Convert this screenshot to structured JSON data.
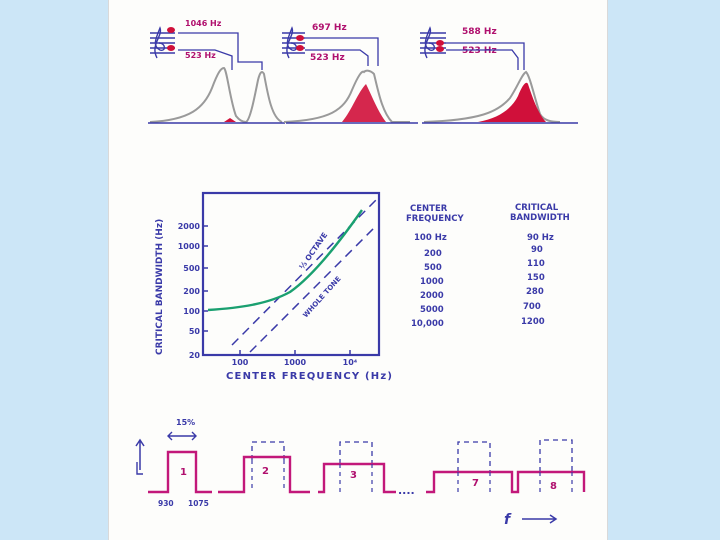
{
  "top_panels": [
    {
      "upper_freq": "1046 Hz",
      "lower_freq": "523 Hz"
    },
    {
      "upper_freq": "697 Hz",
      "lower_freq": "523 Hz"
    },
    {
      "upper_freq": "588 Hz",
      "lower_freq": "523 Hz"
    }
  ],
  "graph": {
    "ylabel": "CRITICAL BANDWIDTH (Hz)",
    "xlabel": "CENTER FREQUENCY (Hz)",
    "y_ticks": [
      "2000",
      "1000",
      "500",
      "200",
      "100",
      "50",
      "20"
    ],
    "x_ticks": [
      "100",
      "1000",
      "10⁴"
    ],
    "line_labels": {
      "third_octave": "⅓ OCTAVE",
      "whole_tone": "WHOLE TONE"
    }
  },
  "table": {
    "col1_header": [
      "CENTER",
      "FREQUENCY"
    ],
    "col2_header": [
      "CRITICAL",
      "BANDWIDTH"
    ],
    "rows": [
      {
        "f": "100 Hz",
        "bw": "90 Hz"
      },
      {
        "f": "200",
        "bw": "90"
      },
      {
        "f": "500",
        "bw": "110"
      },
      {
        "f": "1000",
        "bw": "150"
      },
      {
        "f": "2000",
        "bw": "280"
      },
      {
        "f": "5000",
        "bw": "700"
      },
      {
        "f": "10,000",
        "bw": "1200"
      }
    ]
  },
  "filters": {
    "percent_label": "15%",
    "band_numbers": [
      "1",
      "2",
      "3",
      "7",
      "8"
    ],
    "left_freq": "930",
    "right_freq": "1075",
    "ellipsis": "....",
    "f_axis_label": "f"
  },
  "colors": {
    "ink_blue": "#3a3aa8",
    "ink_magenta": "#c2187a",
    "ink_red": "#d0103a",
    "ink_green": "#1aa070",
    "ink_gray": "#9a9a9a"
  }
}
